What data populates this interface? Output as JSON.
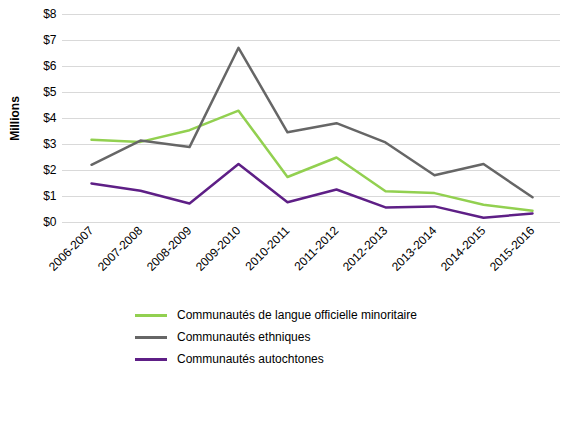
{
  "chart_data": {
    "type": "line",
    "y_label": "Millions",
    "categories": [
      "2006-2007",
      "2007-2008",
      "2008-2009",
      "2009-2010",
      "2010-2011",
      "2011-2012",
      "2012-2013",
      "2013-2014",
      "2014-2015",
      "2015-2016"
    ],
    "series": [
      {
        "name": "Communautés de langue officielle minoritaire",
        "color": "#92d050",
        "values": [
          3.18,
          3.1,
          3.55,
          4.3,
          1.75,
          2.5,
          1.2,
          1.13,
          0.68,
          0.45
        ]
      },
      {
        "name": "Communautés ethniques",
        "color": "#666666",
        "values": [
          2.22,
          3.15,
          2.9,
          6.72,
          3.47,
          3.82,
          3.08,
          1.82,
          2.25,
          0.97
        ]
      },
      {
        "name": "Communautés autochtones",
        "color": "#5e1f86",
        "values": [
          1.5,
          1.22,
          0.73,
          2.25,
          0.78,
          1.27,
          0.58,
          0.62,
          0.18,
          0.35
        ]
      }
    ],
    "ylim": [
      0,
      8
    ],
    "yticks": [
      {
        "value": 0,
        "label": "$0"
      },
      {
        "value": 1,
        "label": "$1"
      },
      {
        "value": 2,
        "label": "$2"
      },
      {
        "value": 3,
        "label": "$3"
      },
      {
        "value": 4,
        "label": "$4"
      },
      {
        "value": 5,
        "label": "$5"
      },
      {
        "value": 6,
        "label": "$6"
      },
      {
        "value": 7,
        "label": "$7"
      },
      {
        "value": 8,
        "label": "$8"
      }
    ],
    "grid": true,
    "legend": "bottom"
  }
}
